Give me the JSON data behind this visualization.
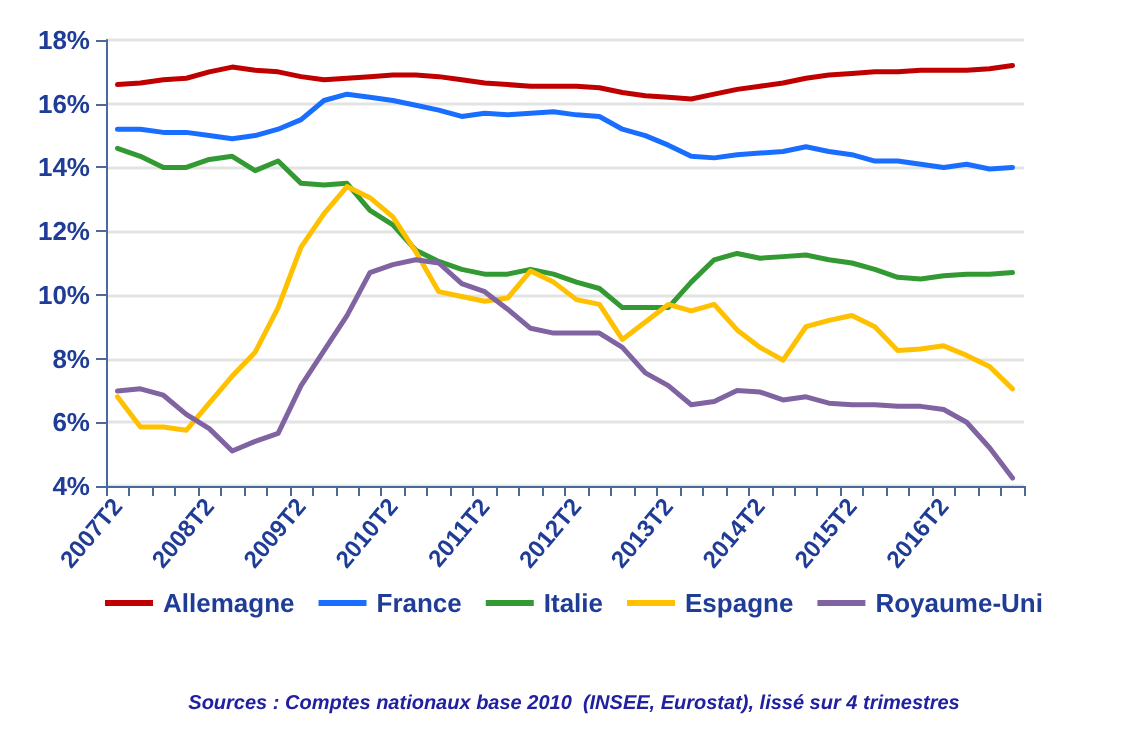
{
  "chart_data": {
    "type": "line",
    "categories": [
      "2007T2",
      null,
      null,
      null,
      "2008T2",
      null,
      null,
      null,
      "2009T2",
      null,
      null,
      null,
      "2010T2",
      null,
      null,
      null,
      "2011T2",
      null,
      null,
      null,
      "2012T2",
      null,
      null,
      null,
      "2013T2",
      null,
      null,
      null,
      "2014T2",
      null,
      null,
      null,
      "2015T2",
      null,
      null,
      null,
      "2016T2",
      null,
      null,
      null
    ],
    "series": [
      {
        "name": "Allemagne",
        "color": "#c00000",
        "values": [
          16.6,
          16.65,
          16.75,
          16.8,
          17.0,
          17.15,
          17.05,
          17.0,
          16.85,
          16.75,
          16.8,
          16.85,
          16.9,
          16.9,
          16.85,
          16.75,
          16.65,
          16.6,
          16.55,
          16.55,
          16.55,
          16.5,
          16.35,
          16.25,
          16.2,
          16.15,
          16.3,
          16.45,
          16.55,
          16.65,
          16.8,
          16.9,
          16.95,
          17.0,
          17.0,
          17.05,
          17.05,
          17.05,
          17.1,
          17.2
        ]
      },
      {
        "name": "France",
        "color": "#1a6eff",
        "values": [
          15.2,
          15.2,
          15.1,
          15.1,
          15.0,
          14.9,
          15.0,
          15.2,
          15.5,
          16.1,
          16.3,
          16.2,
          16.1,
          15.95,
          15.8,
          15.6,
          15.7,
          15.65,
          15.7,
          15.75,
          15.65,
          15.6,
          15.2,
          15.0,
          14.7,
          14.35,
          14.3,
          14.4,
          14.45,
          14.5,
          14.65,
          14.5,
          14.4,
          14.2,
          14.2,
          14.1,
          14.0,
          14.1,
          13.95,
          14.0
        ]
      },
      {
        "name": "Italie",
        "color": "#339933",
        "values": [
          14.6,
          14.35,
          14.0,
          14.0,
          14.25,
          14.35,
          13.9,
          14.2,
          13.5,
          13.45,
          13.5,
          12.65,
          12.2,
          11.4,
          11.05,
          10.8,
          10.65,
          10.65,
          10.8,
          10.65,
          10.4,
          10.2,
          9.6,
          9.6,
          9.6,
          10.4,
          11.1,
          11.3,
          11.15,
          11.2,
          11.25,
          11.1,
          11.0,
          10.8,
          10.55,
          10.5,
          10.6,
          10.65,
          10.65,
          10.7
        ]
      },
      {
        "name": "Espagne",
        "color": "#ffc000",
        "values": [
          6.8,
          5.85,
          5.85,
          5.75,
          6.6,
          7.45,
          8.2,
          9.6,
          11.5,
          12.55,
          13.4,
          13.05,
          12.45,
          11.35,
          10.1,
          9.95,
          9.8,
          9.9,
          10.75,
          10.4,
          9.85,
          9.7,
          8.6,
          9.15,
          9.7,
          9.5,
          9.7,
          8.9,
          8.35,
          7.95,
          9.0,
          9.2,
          9.35,
          9.0,
          8.25,
          8.3,
          8.4,
          8.1,
          7.75,
          7.05
        ]
      },
      {
        "name": "Royaume-Uni",
        "color": "#8064a2",
        "values": [
          6.98,
          7.05,
          6.85,
          6.25,
          5.8,
          5.1,
          5.4,
          5.65,
          7.15,
          8.25,
          9.35,
          10.7,
          10.95,
          11.1,
          11.0,
          10.35,
          10.1,
          9.55,
          8.95,
          8.8,
          8.8,
          8.8,
          8.35,
          7.55,
          7.15,
          6.55,
          6.65,
          7.0,
          6.95,
          6.7,
          6.8,
          6.6,
          6.55,
          6.55,
          6.5,
          6.5,
          6.4,
          6.0,
          5.2,
          4.25
        ]
      }
    ],
    "ylim": [
      4,
      18
    ],
    "yticks": [
      {
        "value": 4,
        "label": "4%"
      },
      {
        "value": 6,
        "label": "6%"
      },
      {
        "value": 8,
        "label": "8%"
      },
      {
        "value": 10,
        "label": "10%"
      },
      {
        "value": 12,
        "label": "12%"
      },
      {
        "value": 14,
        "label": "14%"
      },
      {
        "value": 16,
        "label": "16%"
      },
      {
        "value": 18,
        "label": "18%"
      }
    ],
    "grid": "y",
    "legend": "bottom",
    "marker": "none",
    "line_style": "solid",
    "annotations": [
      "Sources : Comptes nationaux base 2010  (INSEE, Eurostat), lissé sur 4 trimestres"
    ]
  }
}
